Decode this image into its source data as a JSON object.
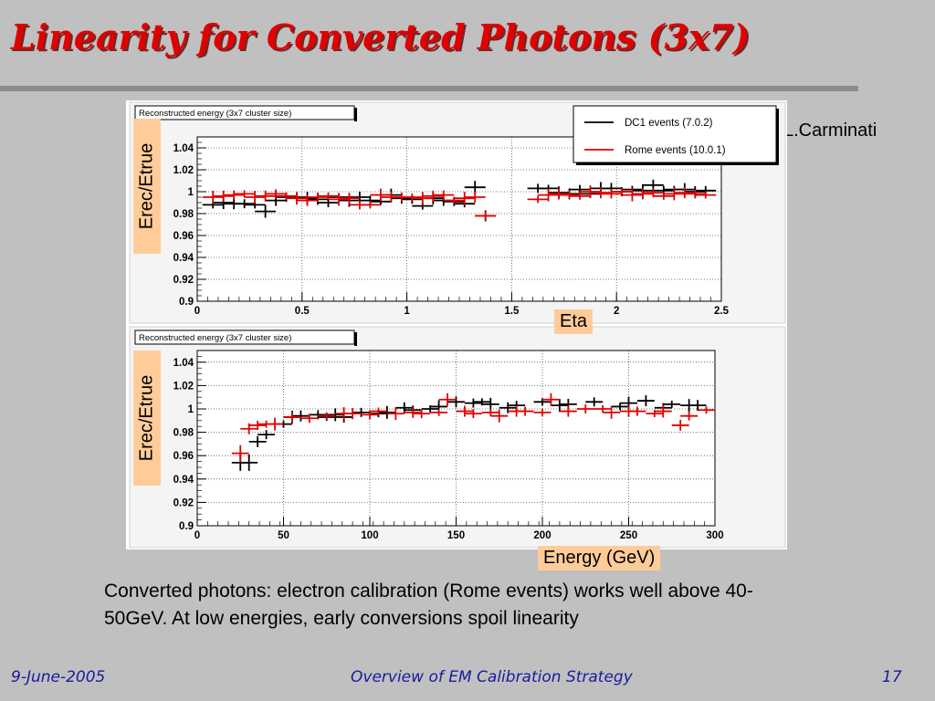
{
  "slide": {
    "title": "Linearity for Converted Photons (3x7)",
    "author": "L.Carminati",
    "caption": "Converted photons: electron calibration (Rome events) works well above 40-50GeV. At low energies, early conversions spoil linearity",
    "footer": {
      "date": "9-June-2005",
      "talk": "Overview of EM Calibration Strategy",
      "page": "17"
    },
    "colors": {
      "title": "#e00000",
      "label_box": "#ffcc99",
      "footer": "#1a1aa0",
      "rome": "#e00000",
      "dc1": "#000000"
    }
  },
  "chart_data": [
    {
      "type": "scatter",
      "panel_title": "Reconstructed energy (3x7 cluster size)",
      "xlabel": "Eta",
      "ylabel": "Erec/Etrue",
      "xlim": [
        0,
        2.5
      ],
      "ylim": [
        0.9,
        1.05
      ],
      "x_ticks": [
        "0",
        "0.5",
        "1",
        "1.5",
        "2",
        "2.5"
      ],
      "y_ticks": [
        "0.9",
        "0.92",
        "0.94",
        "0.96",
        "0.98",
        "1",
        "1.02",
        "1.04"
      ],
      "grid": true,
      "legend": {
        "placement": "top-right",
        "entries": [
          "DC1 events (7.0.2)",
          "Rome events (10.0.1)"
        ]
      },
      "series": [
        {
          "name": "DC1 events (7.0.2)",
          "color": "#000000",
          "x": [
            0.075,
            0.125,
            0.175,
            0.225,
            0.275,
            0.325,
            0.375,
            0.425,
            0.475,
            0.525,
            0.575,
            0.625,
            0.675,
            0.725,
            0.775,
            0.825,
            0.875,
            0.925,
            0.975,
            1.025,
            1.075,
            1.125,
            1.175,
            1.225,
            1.275,
            1.325,
            1.375,
            1.625,
            1.675,
            1.725,
            1.775,
            1.825,
            1.875,
            1.925,
            1.975,
            2.025,
            2.075,
            2.125,
            2.175,
            2.225,
            2.275,
            2.325,
            2.375,
            2.425
          ],
          "y": [
            0.988,
            0.99,
            0.989,
            0.989,
            0.988,
            0.982,
            0.992,
            0.995,
            0.995,
            0.994,
            0.993,
            0.99,
            0.995,
            0.992,
            0.995,
            0.992,
            0.991,
            0.997,
            0.994,
            0.993,
            0.987,
            0.994,
            0.992,
            0.991,
            0.989,
            1.004,
            0.978,
            1.003,
            1.003,
            0.999,
            0.998,
            1.002,
            0.998,
            1.003,
            1.003,
            1.0,
            1.002,
            1.001,
            1.006,
            1.001,
            1.002,
            1.002,
            1.0,
            1.001
          ]
        },
        {
          "name": "Rome events (10.0.1)",
          "color": "#e00000",
          "x": [
            0.075,
            0.125,
            0.175,
            0.225,
            0.275,
            0.325,
            0.375,
            0.425,
            0.475,
            0.525,
            0.575,
            0.625,
            0.675,
            0.725,
            0.775,
            0.825,
            0.875,
            0.925,
            0.975,
            1.025,
            1.075,
            1.125,
            1.175,
            1.225,
            1.275,
            1.325,
            1.375,
            1.625,
            1.675,
            1.725,
            1.775,
            1.825,
            1.875,
            1.925,
            1.975,
            2.025,
            2.075,
            2.125,
            2.175,
            2.225,
            2.275,
            2.325,
            2.375,
            2.425
          ],
          "y": [
            0.995,
            0.996,
            0.997,
            0.998,
            0.995,
            0.996,
            0.998,
            0.996,
            0.994,
            0.992,
            0.995,
            0.996,
            0.993,
            0.994,
            0.988,
            0.988,
            0.997,
            0.995,
            0.995,
            0.995,
            0.994,
            0.996,
            0.997,
            0.992,
            0.994,
            0.995,
            0.978,
            0.993,
            0.997,
            0.998,
            0.997,
            0.996,
            1.0,
            0.999,
            0.998,
            1.0,
            0.997,
            0.998,
            0.999,
            0.996,
            0.998,
            0.999,
            0.998,
            0.997
          ]
        }
      ]
    },
    {
      "type": "scatter",
      "panel_title": "Reconstructed energy (3x7 cluster size)",
      "xlabel": "Energy (GeV)",
      "ylabel": "Erec/Etrue",
      "xlim": [
        0,
        300
      ],
      "ylim": [
        0.9,
        1.05
      ],
      "x_ticks": [
        "0",
        "50",
        "100",
        "150",
        "200",
        "250",
        "300"
      ],
      "y_ticks": [
        "0.9",
        "0.92",
        "0.94",
        "0.96",
        "0.98",
        "1",
        "1.02",
        "1.04"
      ],
      "grid": true,
      "series": [
        {
          "name": "DC1 events (7.0.2)",
          "color": "#000000",
          "x": [
            25,
            30,
            35,
            40,
            50,
            55,
            60,
            70,
            75,
            80,
            85,
            95,
            105,
            110,
            120,
            125,
            135,
            140,
            150,
            160,
            165,
            170,
            180,
            185,
            200,
            210,
            215,
            230,
            245,
            250,
            260,
            270,
            275,
            285,
            290
          ],
          "y": [
            0.954,
            0.954,
            0.972,
            0.978,
            0.987,
            0.993,
            0.994,
            0.995,
            0.993,
            0.995,
            0.993,
            0.997,
            0.996,
            0.997,
            1.001,
            0.999,
            1.0,
            1.002,
            1.006,
            1.005,
            1.006,
            1.004,
            1.001,
            1.003,
            1.006,
            1.003,
            1.004,
            1.006,
            1.002,
            1.005,
            1.007,
            1.001,
            1.004,
            1.003,
            1.003
          ]
        },
        {
          "name": "Rome events (10.0.1)",
          "color": "#e00000",
          "x": [
            25,
            30,
            35,
            40,
            45,
            55,
            65,
            75,
            85,
            90,
            100,
            105,
            115,
            125,
            130,
            140,
            145,
            155,
            160,
            170,
            175,
            185,
            190,
            200,
            205,
            215,
            225,
            235,
            240,
            250,
            255,
            265,
            270,
            280,
            285,
            295
          ],
          "y": [
            0.962,
            0.983,
            0.986,
            0.987,
            0.987,
            0.993,
            0.992,
            0.994,
            0.996,
            0.996,
            0.995,
            0.998,
            0.996,
            0.997,
            0.996,
            0.997,
            1.008,
            0.998,
            0.996,
            0.997,
            0.994,
            0.998,
            0.998,
            0.997,
            1.008,
            0.998,
            1.0,
            1.0,
            0.997,
            0.998,
            0.998,
            0.996,
            0.998,
            0.986,
            0.994,
            0.999
          ]
        }
      ]
    }
  ]
}
